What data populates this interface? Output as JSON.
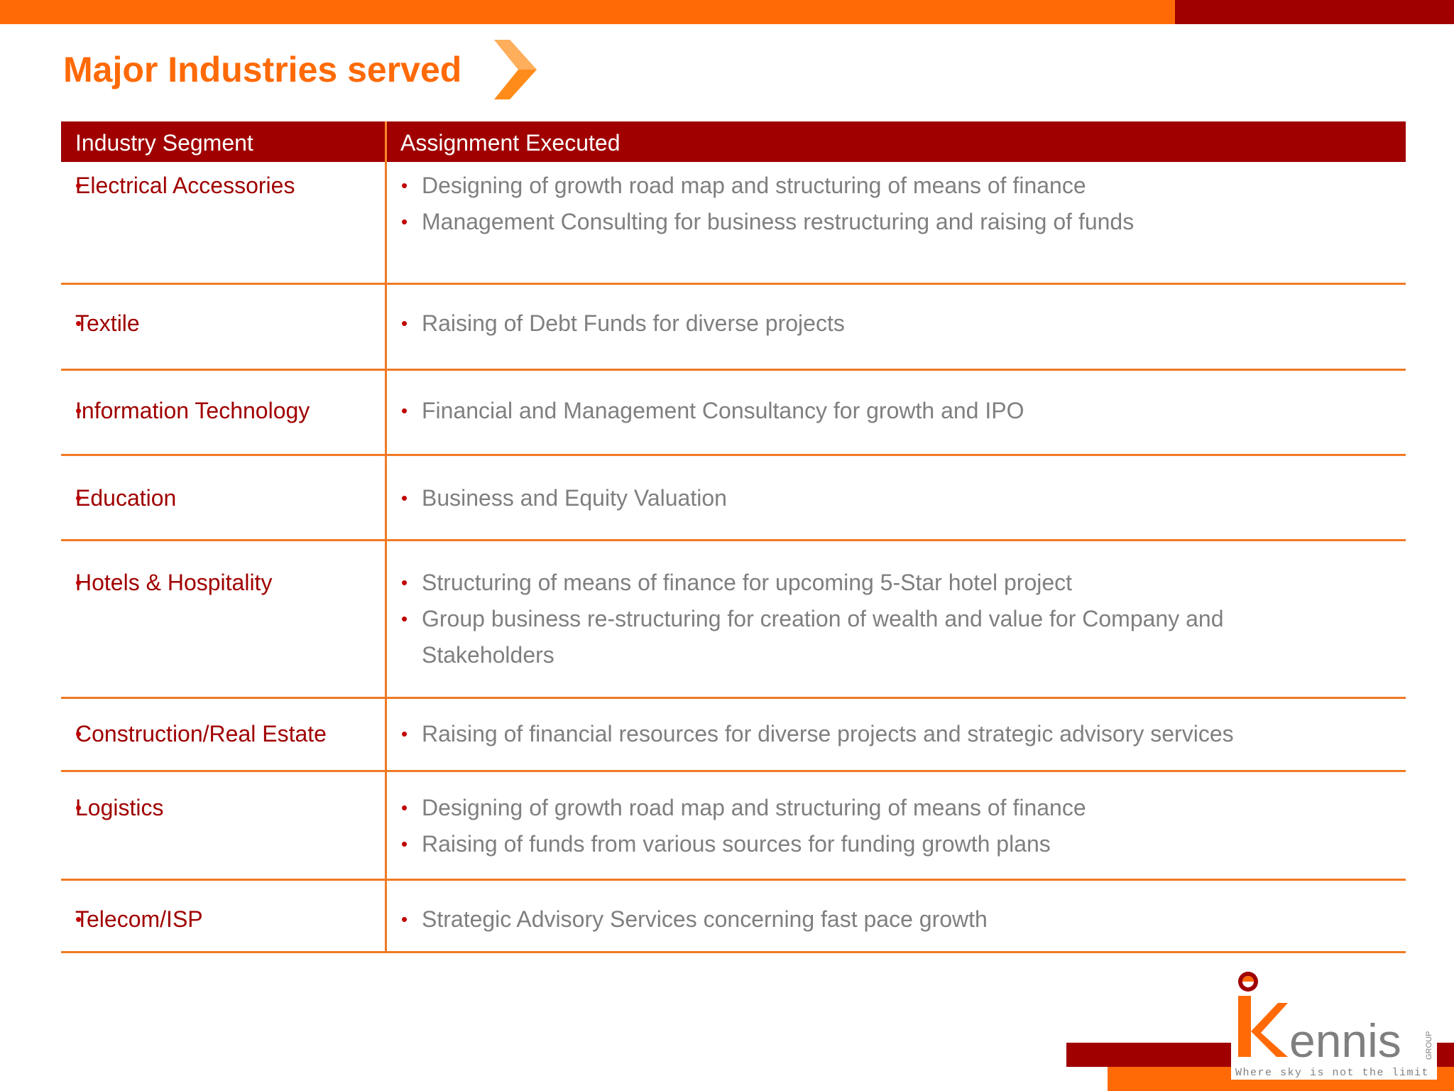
{
  "title": "Major Industries served",
  "colors": {
    "accent_orange": "#ff6a07",
    "accent_red": "#a00000",
    "body_text": "#7f7f7f"
  },
  "table": {
    "headers": {
      "segment": "Industry Segment",
      "assignment": "Assignment Executed"
    },
    "rows": [
      {
        "segment": "Electrical Accessories",
        "assignments": [
          "Designing of growth road map and structuring of means of finance",
          "Management Consulting for business restructuring and raising of funds"
        ]
      },
      {
        "segment": "Textile",
        "assignments": [
          "Raising of Debt Funds for diverse projects"
        ]
      },
      {
        "segment": "Information Technology",
        "assignments": [
          "Financial and Management Consultancy for growth and IPO"
        ]
      },
      {
        "segment": "Education",
        "assignments": [
          "Business and Equity Valuation"
        ]
      },
      {
        "segment": "Hotels & Hospitality",
        "assignments": [
          "Structuring of means of finance for upcoming 5-Star hotel project",
          "Group business re-structuring for creation of wealth and value for Company and Stakeholders"
        ]
      },
      {
        "segment": "Construction/Real Estate",
        "assignments": [
          "Raising of financial resources for diverse projects and strategic advisory services"
        ]
      },
      {
        "segment": "Logistics",
        "assignments": [
          "Designing of growth  road map and structuring of means of finance",
          "Raising of funds from various sources for funding growth plans"
        ]
      },
      {
        "segment": "Telecom/ISP",
        "assignments": [
          "Strategic  Advisory Services concerning fast pace growth"
        ]
      }
    ]
  },
  "logo": {
    "name": "Kennis",
    "group_label": "GROUP",
    "tagline": "Where sky is not the limit"
  }
}
